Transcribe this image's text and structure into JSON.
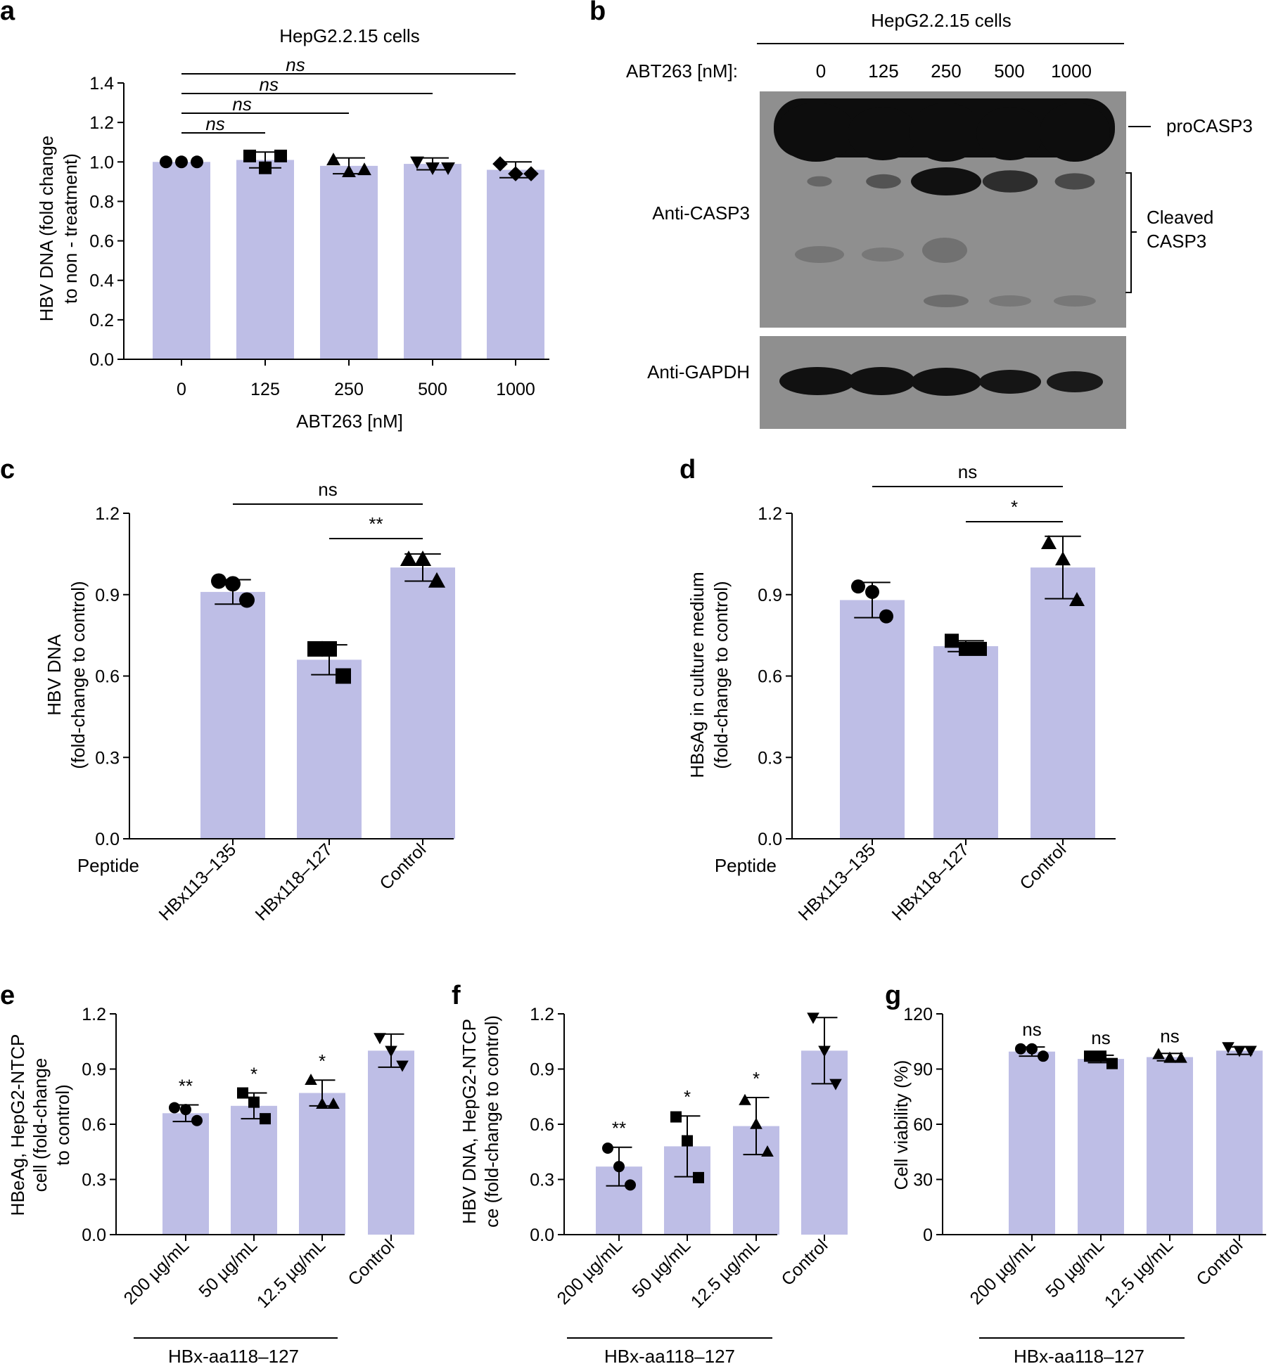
{
  "colors": {
    "bar": "#bebee6",
    "ink": "#000000",
    "blot_bg": "#8f8f8f",
    "blot_band": "#111111"
  },
  "chart_data": [
    {
      "panel": "a",
      "type": "bar",
      "title": "HepG2.2.15 cells",
      "xlabel": "ABT263 [nM]",
      "ylabel": [
        "HBV DNA (fold change",
        "to non - treatment)"
      ],
      "ylim": [
        0,
        1.4
      ],
      "yticks": [
        0.0,
        0.2,
        0.4,
        0.6,
        0.8,
        1.0,
        1.2,
        1.4
      ],
      "ytick_labels": [
        "0.0",
        "0.2",
        "0.4",
        "0.6",
        "0.8",
        "1.0",
        "1.2",
        "1.4"
      ],
      "categories": [
        "0",
        "125",
        "250",
        "500",
        "1000"
      ],
      "values": [
        1.0,
        1.01,
        0.98,
        0.99,
        0.96
      ],
      "errors": [
        0.0,
        0.04,
        0.04,
        0.03,
        0.04
      ],
      "markers": [
        "circle",
        "square",
        "triangle-up",
        "triangle-down",
        "diamond"
      ],
      "points": [
        [
          1.0,
          1.0,
          1.0
        ],
        [
          1.03,
          0.97,
          1.03
        ],
        [
          1.01,
          0.95,
          0.96
        ],
        [
          1.0,
          0.97,
          0.97
        ],
        [
          0.99,
          0.94,
          0.94
        ]
      ],
      "significance": [
        {
          "from": 0,
          "to": 1,
          "label": "ns"
        },
        {
          "from": 0,
          "to": 2,
          "label": "ns"
        },
        {
          "from": 0,
          "to": 3,
          "label": "ns"
        },
        {
          "from": 0,
          "to": 4,
          "label": "ns"
        }
      ]
    },
    {
      "panel": "c",
      "type": "bar",
      "title": "",
      "xlabel": "Peptide",
      "ylabel": [
        "HBV DNA",
        "(fold-change to control)"
      ],
      "ylim": [
        0,
        1.2
      ],
      "yticks": [
        0.0,
        0.3,
        0.6,
        0.9,
        1.2
      ],
      "ytick_labels": [
        "0.0",
        "0.3",
        "0.6",
        "0.9",
        "1.2"
      ],
      "categories": [
        "HBx113–135",
        "HBx118–127",
        "Control"
      ],
      "values": [
        0.91,
        0.66,
        1.0
      ],
      "errors": [
        0.045,
        0.055,
        0.05
      ],
      "markers": [
        "circle",
        "square",
        "triangle-up"
      ],
      "points": [
        [
          0.95,
          0.94,
          0.88
        ],
        [
          0.7,
          0.7,
          0.6
        ],
        [
          1.03,
          1.03,
          0.95
        ]
      ],
      "significance": [
        {
          "from": 0,
          "to": 2,
          "label": "ns"
        },
        {
          "from": 1,
          "to": 2,
          "label": "**"
        }
      ]
    },
    {
      "panel": "d",
      "type": "bar",
      "title": "",
      "xlabel": "Peptide",
      "ylabel": [
        "HBsAg in culture medium",
        "(fold-change to control)"
      ],
      "ylim": [
        0,
        1.2
      ],
      "yticks": [
        0.0,
        0.3,
        0.6,
        0.9,
        1.2
      ],
      "ytick_labels": [
        "0.0",
        "0.3",
        "0.6",
        "0.9",
        "1.2"
      ],
      "categories": [
        "HBx113–135",
        "HBx118–127",
        "Control"
      ],
      "values": [
        0.88,
        0.71,
        1.0
      ],
      "errors": [
        0.065,
        0.02,
        0.115
      ],
      "markers": [
        "circle",
        "square",
        "triangle-up"
      ],
      "points": [
        [
          0.93,
          0.91,
          0.82
        ],
        [
          0.73,
          0.7,
          0.7
        ],
        [
          1.09,
          1.03,
          0.88
        ]
      ],
      "significance": [
        {
          "from": 0,
          "to": 2,
          "label": "ns"
        },
        {
          "from": 1,
          "to": 2,
          "label": "*"
        }
      ]
    },
    {
      "panel": "e",
      "type": "bar",
      "title": "",
      "xlabel": "",
      "group_label": "HBx-aa118–127",
      "ylabel": [
        "HBeAg, HepG2-NTCP",
        "cell (fold-change",
        "to control)"
      ],
      "ylim": [
        0,
        1.2
      ],
      "yticks": [
        0.0,
        0.3,
        0.6,
        0.9,
        1.2
      ],
      "ytick_labels": [
        "0.0",
        "0.3",
        "0.6",
        "0.9",
        "1.2"
      ],
      "categories": [
        "200 µg/mL",
        "50 µg/mL",
        "12.5 µg/mL",
        "Control"
      ],
      "values": [
        0.66,
        0.7,
        0.77,
        1.0
      ],
      "errors": [
        0.045,
        0.07,
        0.07,
        0.09
      ],
      "markers": [
        "circle",
        "square",
        "triangle-up",
        "triangle-down"
      ],
      "points": [
        [
          0.69,
          0.68,
          0.62
        ],
        [
          0.77,
          0.72,
          0.63
        ],
        [
          0.84,
          0.71,
          0.71
        ],
        [
          1.07,
          1.0,
          0.92
        ]
      ],
      "annotations": [
        "**",
        "*",
        "*",
        ""
      ]
    },
    {
      "panel": "f",
      "type": "bar",
      "title": "",
      "xlabel": "",
      "group_label": "HBx-aa118–127",
      "ylabel": [
        "HBV DNA, HepG2-NTCP",
        "ce (fold-change to control)"
      ],
      "ylim": [
        0,
        1.2
      ],
      "yticks": [
        0.0,
        0.3,
        0.6,
        0.9,
        1.2
      ],
      "ytick_labels": [
        "0.0",
        "0.3",
        "0.6",
        "0.9",
        "1.2"
      ],
      "categories": [
        "200 µg/mL",
        "50 µg/mL",
        "12.5 µg/mL",
        "Control"
      ],
      "values": [
        0.37,
        0.48,
        0.59,
        1.0
      ],
      "errors": [
        0.105,
        0.165,
        0.155,
        0.18
      ],
      "markers": [
        "circle",
        "square",
        "triangle-up",
        "triangle-down"
      ],
      "points": [
        [
          0.47,
          0.37,
          0.27
        ],
        [
          0.64,
          0.51,
          0.31
        ],
        [
          0.73,
          0.6,
          0.45
        ],
        [
          1.18,
          1.0,
          0.82
        ]
      ],
      "annotations": [
        "**",
        "*",
        "*",
        ""
      ]
    },
    {
      "panel": "g",
      "type": "bar",
      "title": "",
      "xlabel": "",
      "group_label": "HBx-aa118–127",
      "ylabel": [
        "Cell viability (%)"
      ],
      "ylim": [
        0,
        120
      ],
      "yticks": [
        0,
        30,
        60,
        90,
        120
      ],
      "ytick_labels": [
        "0",
        "30",
        "60",
        "90",
        "120"
      ],
      "categories": [
        "200 µg/mL",
        "50 µg/mL",
        "12.5 µg/mL",
        "Control"
      ],
      "values": [
        99.5,
        95.5,
        96.5,
        100
      ],
      "errors": [
        2.5,
        2,
        2,
        2
      ],
      "markers": [
        "circle",
        "square",
        "triangle-up",
        "triangle-down"
      ],
      "points": [
        [
          101,
          101,
          97
        ],
        [
          97,
          97,
          93
        ],
        [
          98,
          96,
          96
        ],
        [
          102,
          100,
          100
        ]
      ],
      "annotations": [
        "ns",
        "ns",
        "ns",
        ""
      ]
    }
  ],
  "blot": {
    "panel": "b",
    "title": "HepG2.2.15 cells",
    "treatment_label": "ABT263 [nM]:",
    "lanes": [
      "0",
      "125",
      "250",
      "500",
      "1000"
    ],
    "rows": [
      {
        "antibody": "Anti-CASP3",
        "labels": [
          "proCASP3",
          "Cleaved",
          "CASP3"
        ]
      },
      {
        "antibody": "Anti-GAPDH",
        "labels": []
      }
    ],
    "cleaved_band_intensity": [
      0.1,
      0.3,
      1.0,
      0.7,
      0.4
    ]
  }
}
